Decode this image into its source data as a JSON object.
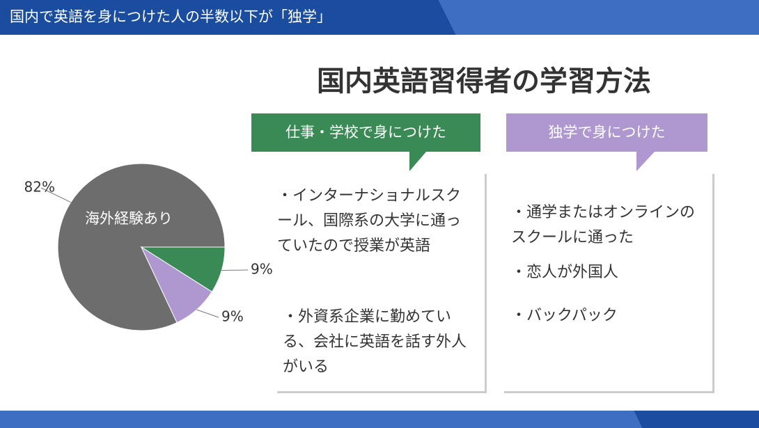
{
  "header": {
    "title": "国内で英語を身につけた人の半数以下が「独学」"
  },
  "title": "国内英語習得者の学習方法",
  "chart_data": {
    "type": "pie",
    "categories": [
      "海外経験あり",
      null,
      null
    ],
    "values": [
      82,
      9,
      9
    ],
    "value_labels": [
      "82%",
      "9%",
      "9%"
    ],
    "colors": [
      "#6d6d6d",
      "#3a8a55",
      "#ae98cf"
    ]
  },
  "columns": [
    {
      "heading": "仕事・学校で身につけた",
      "items": [
        "・インターナショナルスクール、国際系の大学に通っていたので授業が英語",
        "・外資系企業に勤めている、会社に英語を話す外人がいる"
      ]
    },
    {
      "heading": "独学で身につけた",
      "items": [
        "・通学またはオンラインのスクールに通った",
        "・恋人が外国人",
        "・バックパック"
      ]
    }
  ]
}
